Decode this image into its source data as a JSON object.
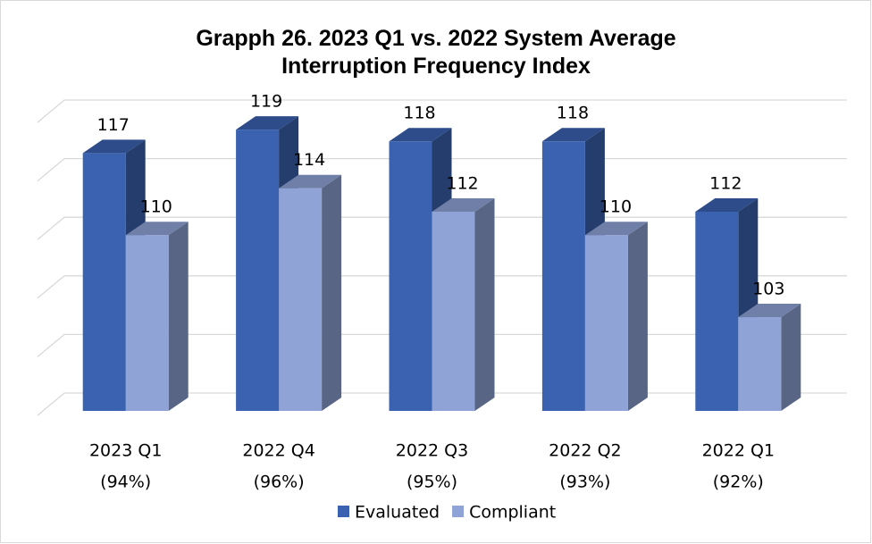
{
  "chart_data": {
    "type": "bar3d",
    "title": "Grapph 26. 2023 Q1 vs. 2022 System Average Interruption Frequency Index",
    "categories": [
      "2023 Q1",
      "2022 Q4",
      "2022 Q3",
      "2022 Q2",
      "2022 Q1"
    ],
    "category_sublabels": [
      "(94%)",
      "(96%)",
      "(95%)",
      "(93%)",
      "(92%)"
    ],
    "series": [
      {
        "name": "Evaluated",
        "color": "#3a62b0",
        "values": [
          117,
          119,
          118,
          118,
          112
        ]
      },
      {
        "name": "Compliant",
        "color": "#8fa3d6",
        "values": [
          110,
          114,
          112,
          110,
          103
        ]
      }
    ],
    "ylim": [
      95,
      120
    ],
    "yticks": [
      95,
      100,
      105,
      110,
      115,
      120
    ],
    "grid": true,
    "legend": "bottom"
  }
}
